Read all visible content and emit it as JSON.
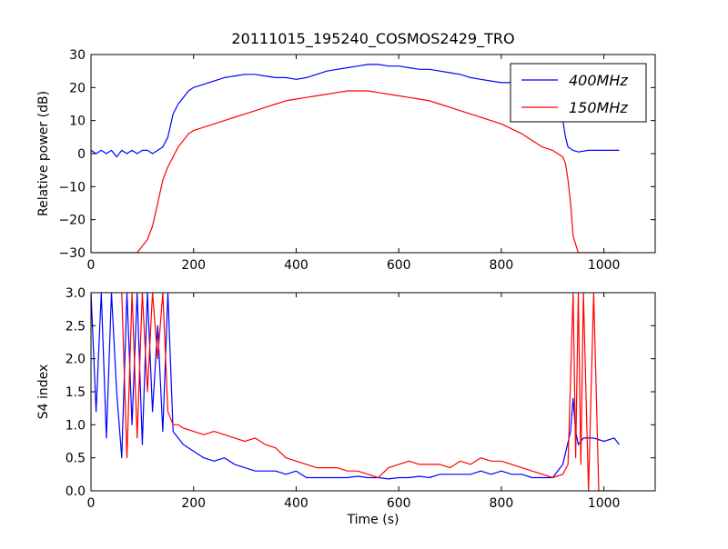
{
  "figure": {
    "title": "20111015_195240_COSMOS2429_TRO",
    "xlabel": "Time (s)"
  },
  "chart_data": [
    {
      "type": "line",
      "title": "20111015_195240_COSMOS2429_TRO",
      "xlabel": "",
      "ylabel": "Relative power (dB)",
      "xlim": [
        0,
        1100
      ],
      "ylim": [
        -30,
        30
      ],
      "xticks": [
        0,
        200,
        400,
        600,
        800,
        1000
      ],
      "yticks": [
        -30,
        -20,
        -10,
        0,
        10,
        20,
        30
      ],
      "legend": "top-right",
      "series": [
        {
          "name": "400MHz",
          "color": "#0000ff",
          "x": [
            0,
            10,
            20,
            30,
            40,
            50,
            60,
            70,
            80,
            90,
            100,
            110,
            120,
            130,
            140,
            150,
            160,
            170,
            180,
            190,
            200,
            220,
            240,
            260,
            280,
            300,
            320,
            340,
            360,
            380,
            400,
            420,
            440,
            460,
            480,
            500,
            520,
            540,
            560,
            580,
            600,
            620,
            640,
            660,
            680,
            700,
            720,
            740,
            760,
            780,
            800,
            820,
            840,
            860,
            880,
            900,
            910,
            920,
            925,
            930,
            940,
            950,
            970,
            1000,
            1030
          ],
          "y": [
            1,
            0,
            1,
            0,
            1,
            -1,
            1,
            0,
            1,
            0,
            1,
            1,
            0,
            1,
            2,
            5,
            12,
            15,
            17,
            19,
            20,
            21,
            22,
            23,
            23.5,
            24,
            24,
            23.5,
            23,
            23,
            22.5,
            23,
            24,
            25,
            25.5,
            26,
            26.5,
            27,
            27,
            26.5,
            26.5,
            26,
            25.5,
            25.5,
            25,
            24.5,
            24,
            23,
            22.5,
            22,
            21.5,
            21.5,
            21,
            20.5,
            20,
            19,
            16,
            10,
            5,
            2,
            1,
            0.5,
            1,
            1,
            1
          ]
        },
        {
          "name": "150MHz",
          "color": "#ff0000",
          "x": [
            0,
            90,
            100,
            110,
            120,
            130,
            140,
            150,
            160,
            170,
            180,
            190,
            200,
            220,
            240,
            260,
            280,
            300,
            320,
            340,
            360,
            380,
            400,
            420,
            440,
            460,
            480,
            500,
            520,
            540,
            560,
            580,
            600,
            620,
            640,
            660,
            680,
            700,
            720,
            740,
            760,
            780,
            800,
            820,
            840,
            860,
            880,
            900,
            910,
            920,
            925,
            930,
            935,
            940,
            950,
            1030
          ],
          "y": [
            -30,
            -30,
            -28,
            -26,
            -22,
            -15,
            -8,
            -4,
            -1,
            2,
            4,
            6,
            7,
            8,
            9,
            10,
            11,
            12,
            13,
            14,
            15,
            16,
            16.5,
            17,
            17.5,
            18,
            18.5,
            19,
            19,
            19,
            18.5,
            18,
            17.5,
            17,
            16.5,
            16,
            15,
            14,
            13,
            12,
            11,
            10,
            9,
            7.5,
            6,
            4,
            2,
            1,
            0,
            -1,
            -3,
            -8,
            -15,
            -25,
            -30,
            -30
          ]
        }
      ]
    },
    {
      "type": "line",
      "title": "",
      "xlabel": "Time (s)",
      "ylabel": "S4 index",
      "xlim": [
        0,
        1100
      ],
      "ylim": [
        0,
        3
      ],
      "xticks": [
        0,
        200,
        400,
        600,
        800,
        1000
      ],
      "yticks": [
        0.0,
        0.5,
        1.0,
        1.5,
        2.0,
        2.5,
        3.0
      ],
      "series": [
        {
          "name": "400MHz",
          "color": "#0000ff",
          "x": [
            0,
            10,
            20,
            30,
            40,
            50,
            60,
            70,
            80,
            90,
            100,
            110,
            120,
            130,
            140,
            150,
            160,
            170,
            180,
            200,
            220,
            240,
            260,
            280,
            300,
            320,
            340,
            360,
            380,
            400,
            420,
            440,
            460,
            480,
            500,
            520,
            540,
            560,
            580,
            600,
            620,
            640,
            660,
            680,
            700,
            720,
            740,
            760,
            780,
            800,
            820,
            840,
            860,
            880,
            900,
            920,
            935,
            940,
            945,
            950,
            960,
            980,
            1000,
            1020,
            1030
          ],
          "y": [
            3,
            1.2,
            3,
            0.8,
            3,
            1.5,
            0.5,
            3,
            1,
            3,
            0.7,
            3,
            1.2,
            2.5,
            0.9,
            3,
            0.9,
            0.8,
            0.7,
            0.6,
            0.5,
            0.45,
            0.5,
            0.4,
            0.35,
            0.3,
            0.3,
            0.3,
            0.25,
            0.3,
            0.2,
            0.2,
            0.2,
            0.2,
            0.2,
            0.22,
            0.2,
            0.2,
            0.18,
            0.2,
            0.2,
            0.22,
            0.2,
            0.25,
            0.25,
            0.25,
            0.25,
            0.3,
            0.25,
            0.3,
            0.25,
            0.25,
            0.2,
            0.2,
            0.2,
            0.4,
            0.9,
            1.4,
            0.9,
            0.7,
            0.8,
            0.8,
            0.75,
            0.8,
            0.7
          ]
        },
        {
          "name": "150MHz",
          "color": "#ff0000",
          "x": [
            60,
            70,
            80,
            90,
            100,
            110,
            120,
            130,
            140,
            150,
            160,
            170,
            180,
            200,
            220,
            240,
            260,
            280,
            300,
            320,
            340,
            360,
            380,
            400,
            420,
            440,
            460,
            480,
            500,
            520,
            540,
            560,
            580,
            600,
            620,
            640,
            660,
            680,
            700,
            720,
            740,
            760,
            780,
            800,
            820,
            840,
            860,
            880,
            900,
            920,
            930,
            940,
            945,
            950,
            955,
            960,
            970,
            980,
            990,
            1000,
            1030
          ],
          "y": [
            3,
            0.5,
            3,
            0.8,
            3,
            1.5,
            3,
            2,
            3,
            1.2,
            1,
            1,
            0.95,
            0.9,
            0.85,
            0.9,
            0.85,
            0.8,
            0.75,
            0.8,
            0.7,
            0.65,
            0.5,
            0.45,
            0.4,
            0.35,
            0.35,
            0.35,
            0.3,
            0.3,
            0.25,
            0.2,
            0.35,
            0.4,
            0.45,
            0.4,
            0.4,
            0.4,
            0.35,
            0.45,
            0.4,
            0.5,
            0.45,
            0.45,
            0.4,
            0.35,
            0.3,
            0.25,
            0.2,
            0.25,
            0.4,
            3,
            0.5,
            3,
            0.4,
            3,
            0,
            3,
            0,
            0,
            0
          ]
        }
      ]
    }
  ]
}
